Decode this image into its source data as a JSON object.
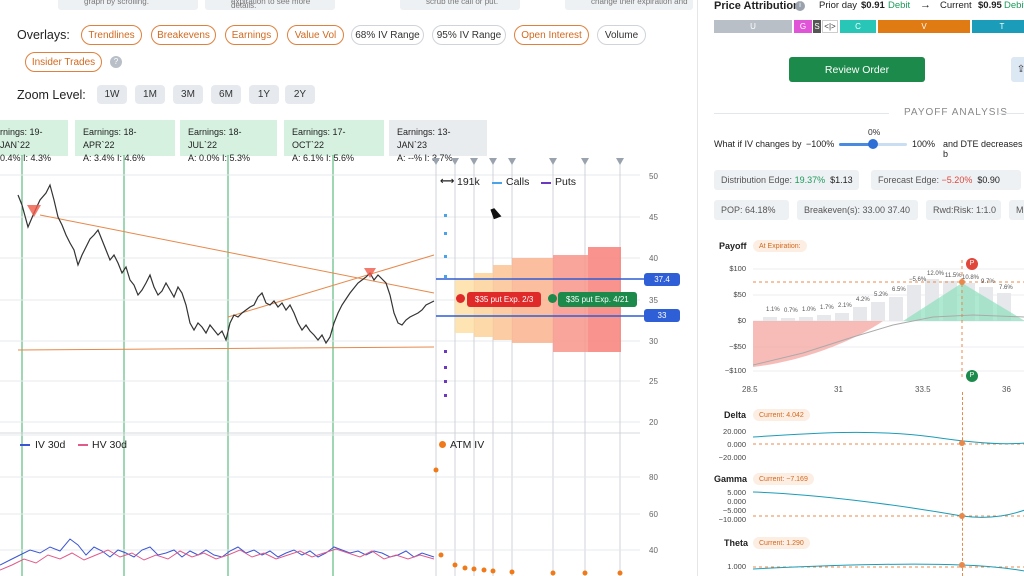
{
  "top_hints": {
    "hint1": "graph by scrolling.",
    "hint2": "expiration to see more details.",
    "hint3": "scrub the call or put.",
    "hint4": "change their expiration and"
  },
  "overlays": {
    "label": "Overlays:",
    "items": [
      {
        "label": "Trendlines",
        "active": true
      },
      {
        "label": "Breakevens",
        "active": true
      },
      {
        "label": "Earnings",
        "active": true
      },
      {
        "label": "Value Vol",
        "active": true
      },
      {
        "label": "68% IV Range",
        "active": false
      },
      {
        "label": "95% IV Range",
        "active": false
      },
      {
        "label": "Open Interest",
        "active": true
      },
      {
        "label": "Volume",
        "active": false
      },
      {
        "label": "Insider Trades",
        "active": true
      }
    ],
    "help_icon": "?"
  },
  "zoom": {
    "label": "Zoom Level:",
    "options": [
      "1W",
      "1M",
      "3M",
      "6M",
      "1Y",
      "2Y"
    ]
  },
  "earnings": [
    {
      "title": "rnings: 19-JAN`22",
      "stats": "0.4%   I: 4.3%"
    },
    {
      "title": "Earnings: 18-APR`22",
      "stats": "A: 3.4%   I: 4.6%"
    },
    {
      "title": "Earnings: 18-JUL`22",
      "stats": "A: 0.0%   I: 5.3%"
    },
    {
      "title": "Earnings: 17-OCT`22",
      "stats": "A: 6.1%   I: 5.6%"
    },
    {
      "title": "Earnings: 13-JAN`23",
      "stats": "A: --%   I: 3.7%"
    }
  ],
  "price_axis": [
    "50",
    "45",
    "40",
    "35",
    "30",
    "25",
    "20"
  ],
  "iv_axis": [
    "80",
    "60",
    "40"
  ],
  "oi_legend": {
    "count": "191k",
    "calls": "Calls",
    "puts": "Puts"
  },
  "price_tags": {
    "upper": "37.4",
    "lower": "33"
  },
  "tooltips": {
    "put": "$35 put Exp. 2/3",
    "call": "$35 put Exp. 4/21"
  },
  "vol_legend": {
    "iv": "IV 30d",
    "hv": "HV 30d",
    "atm": "ATM IV"
  },
  "panel": {
    "title": "Price Attribution",
    "prior_label": "Prior day",
    "prior_value": "$0.91",
    "prior_type": "Debit",
    "current_label": "Current",
    "current_value": "$0.95",
    "current_type": "Debit",
    "segments": [
      {
        "label": "U",
        "color": "#b8bfc7"
      },
      {
        "label": "G",
        "color": "#e055d8"
      },
      {
        "label": "S",
        "color": "#555555"
      },
      {
        "label": "<|>",
        "color": "#ffffff"
      },
      {
        "label": "C",
        "color": "#28c6b6"
      },
      {
        "label": "V",
        "color": "#e07a12"
      },
      {
        "label": "T",
        "color": "#1b9cb8"
      }
    ],
    "review_button": "Review Order",
    "payoff_heading": "PAYOFF ANALYSIS",
    "whatif_prefix": "What if IV changes by",
    "iv_min": "−100%",
    "iv_value": "0%",
    "iv_max": "100%",
    "whatif_suffix": "and DTE decreases b",
    "dist_edge_label": "Distribution Edge:",
    "dist_edge_pct": "19.37%",
    "dist_edge_val": "$1.13",
    "forecast_label": "Forecast Edge:",
    "forecast_pct": "−5.20%",
    "forecast_val": "$0.90",
    "pop": "POP: 64.18%",
    "breakeven": "Breakeven(s): 33.00  37.40",
    "rwd": "Rwd:Risk: 1:1.0",
    "more": "M",
    "payoff_title": "Payoff",
    "payoff_tag": "At Expiration:",
    "payoff_y": [
      "$100",
      "$50",
      "$0",
      "−$50",
      "−$100"
    ],
    "payoff_x": [
      "28.5",
      "31",
      "33.5",
      "36"
    ],
    "pct_labels": [
      "1.1%",
      "0.7%",
      "1.0%",
      "1.7%",
      "2.1%",
      "4.2%",
      "5.2%",
      "6.5%",
      "−5.6%",
      "12.0%",
      "11.5%",
      "10.8%",
      "9.7%",
      "7.6%"
    ],
    "marker_p": "P",
    "delta_title": "Delta",
    "delta_current": "Current:  4.042",
    "delta_y": [
      "20.000",
      "0.000",
      "−20.000"
    ],
    "gamma_title": "Gamma",
    "gamma_current": "Current:  −7.169",
    "gamma_y": [
      "5.000",
      "0.000",
      "−5.000",
      "−10.000"
    ],
    "theta_title": "Theta",
    "theta_current": "Current:  1.290",
    "theta_y": [
      "1.000"
    ]
  }
}
